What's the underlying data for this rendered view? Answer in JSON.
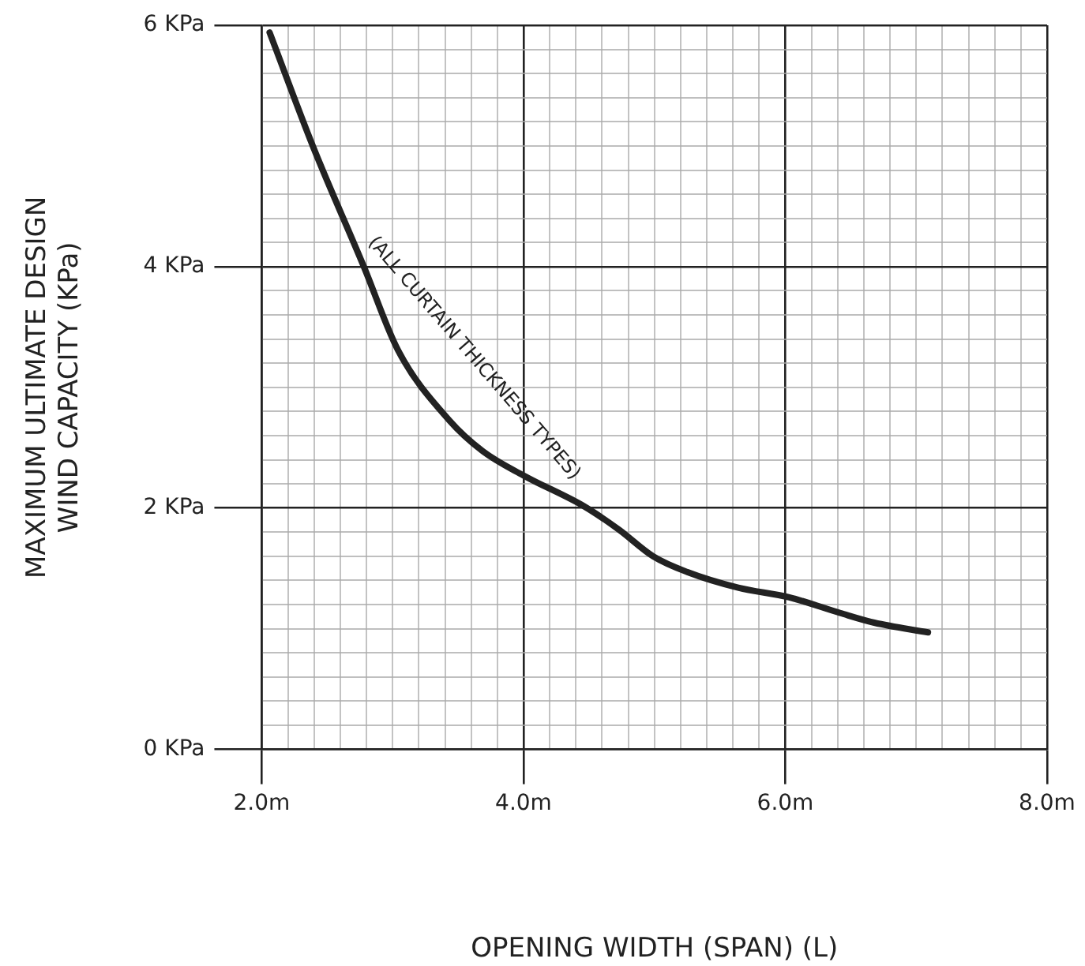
{
  "chart_data": {
    "type": "line",
    "xlabel": "OPENING WIDTH (SPAN) (L)",
    "ylabel": "MAXIMUM ULTIMATE DESIGN\nWIND CAPACITY (KPa)",
    "xlim": [
      2,
      8
    ],
    "ylim": [
      0,
      6
    ],
    "xticks": [
      {
        "value": 2,
        "label": "2.0m"
      },
      {
        "value": 2.2,
        "label": null
      },
      {
        "value": 2.4,
        "label": null
      },
      {
        "value": 2.6,
        "label": null
      },
      {
        "value": 2.8,
        "label": null
      },
      {
        "value": 3,
        "label": null
      },
      {
        "value": 3.2,
        "label": null
      },
      {
        "value": 3.4,
        "label": null
      },
      {
        "value": 3.6,
        "label": null
      },
      {
        "value": 3.8,
        "label": null
      },
      {
        "value": 4,
        "label": "4.0m"
      },
      {
        "value": 4.2,
        "label": null
      },
      {
        "value": 4.4,
        "label": null
      },
      {
        "value": 4.6,
        "label": null
      },
      {
        "value": 4.8,
        "label": null
      },
      {
        "value": 5,
        "label": null
      },
      {
        "value": 5.2,
        "label": null
      },
      {
        "value": 5.4,
        "label": null
      },
      {
        "value": 5.6,
        "label": null
      },
      {
        "value": 5.8,
        "label": null
      },
      {
        "value": 6,
        "label": "6.0m"
      },
      {
        "value": 6.2,
        "label": null
      },
      {
        "value": 6.4,
        "label": null
      },
      {
        "value": 6.6,
        "label": null
      },
      {
        "value": 6.8,
        "label": null
      },
      {
        "value": 7,
        "label": null
      },
      {
        "value": 7.2,
        "label": null
      },
      {
        "value": 7.4,
        "label": null
      },
      {
        "value": 7.6,
        "label": null
      },
      {
        "value": 7.8,
        "label": null
      },
      {
        "value": 8,
        "label": "8.0m"
      }
    ],
    "yticks": [
      {
        "value": 0,
        "label": "0 KPa"
      },
      {
        "value": 0.2,
        "label": null
      },
      {
        "value": 0.4,
        "label": null
      },
      {
        "value": 0.6,
        "label": null
      },
      {
        "value": 0.8,
        "label": null
      },
      {
        "value": 1,
        "label": null
      },
      {
        "value": 1.2,
        "label": null
      },
      {
        "value": 1.4,
        "label": null
      },
      {
        "value": 1.6,
        "label": null
      },
      {
        "value": 1.8,
        "label": null
      },
      {
        "value": 2,
        "label": "2 KPa"
      },
      {
        "value": 2.2,
        "label": null
      },
      {
        "value": 2.4,
        "label": null
      },
      {
        "value": 2.6,
        "label": null
      },
      {
        "value": 2.8,
        "label": null
      },
      {
        "value": 3,
        "label": null
      },
      {
        "value": 3.2,
        "label": null
      },
      {
        "value": 3.4,
        "label": null
      },
      {
        "value": 3.6,
        "label": null
      },
      {
        "value": 3.8,
        "label": null
      },
      {
        "value": 4,
        "label": "4 KPa"
      },
      {
        "value": 4.2,
        "label": null
      },
      {
        "value": 4.4,
        "label": null
      },
      {
        "value": 4.6,
        "label": null
      },
      {
        "value": 4.8,
        "label": null
      },
      {
        "value": 5,
        "label": null
      },
      {
        "value": 5.2,
        "label": null
      },
      {
        "value": 5.4,
        "label": null
      },
      {
        "value": 5.6,
        "label": null
      },
      {
        "value": 5.8,
        "label": null
      },
      {
        "value": 6,
        "label": "6 KPa"
      }
    ],
    "grid": true,
    "marker": "none",
    "line_style": "solid",
    "series": [
      {
        "color": "#222222",
        "x": [
          2.06,
          2.39,
          2.78,
          3.04,
          3.43,
          3.69,
          4.0,
          4.47,
          4.73,
          4.99,
          5.25,
          5.64,
          6.03,
          6.42,
          6.68,
          7.09
        ],
        "values": [
          5.94,
          5.0,
          4.0,
          3.31,
          2.73,
          2.47,
          2.27,
          2.01,
          1.82,
          1.6,
          1.47,
          1.34,
          1.26,
          1.13,
          1.05,
          0.97
        ]
      }
    ],
    "annotations": [
      "(ALL CURTAIN THICKNESS TYPES)"
    ]
  }
}
